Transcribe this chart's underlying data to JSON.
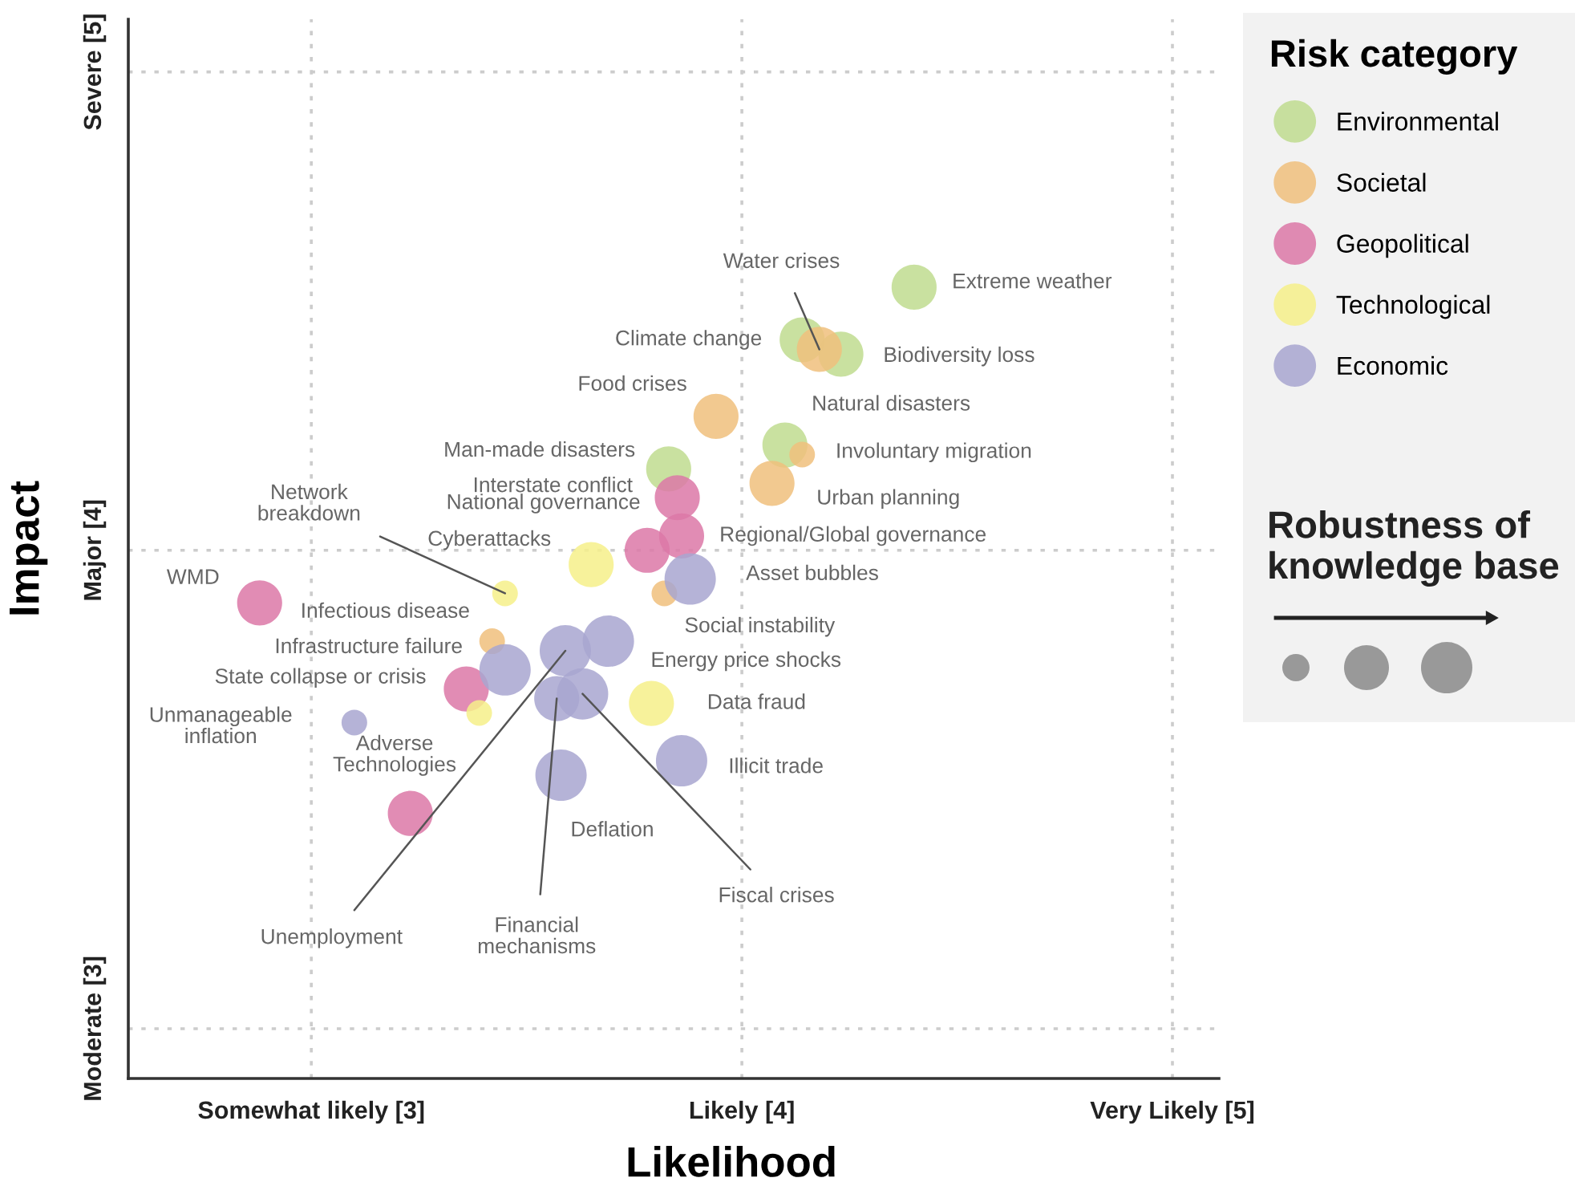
{
  "chart_data": {
    "type": "bubble",
    "xlabel": "Likelihood",
    "ylabel": "Impact",
    "legend_title": "Risk category",
    "legend": "right",
    "xlim": [
      2.575,
      5.108
    ],
    "ylim": [
      2.896,
      5.11
    ],
    "xticks": [
      {
        "value": 3,
        "label": "Somewhat likely [3]"
      },
      {
        "value": 4,
        "label": "Likely [4]"
      },
      {
        "value": 5,
        "label": "Very Likely [5]"
      }
    ],
    "yticks": [
      {
        "value": 3,
        "label": "Moderate [3]"
      },
      {
        "value": 4,
        "label": "Major [4]"
      },
      {
        "value": 5,
        "label": "Severe [5]"
      }
    ],
    "grid": true,
    "series": [
      {
        "name": "Environmental",
        "color": "#bfdc8f",
        "x": [
          4.4,
          4.14,
          4.23,
          4.1,
          3.83
        ],
        "values": [
          4.55,
          4.44,
          4.41,
          4.22,
          4.17
        ],
        "sizes": [
          0.77,
          0.77,
          0.77,
          0.77,
          0.77
        ]
      },
      {
        "name": "Societal",
        "color": "#f0bf7c",
        "x": [
          4.18,
          3.94,
          4.14,
          4.07,
          3.82,
          3.42
        ],
        "values": [
          4.42,
          4.28,
          4.2,
          4.14,
          3.91,
          3.81
        ],
        "sizes": [
          0.77,
          0.77,
          0.25,
          0.77,
          0.25,
          0.25
        ]
      },
      {
        "name": "Geopolitical",
        "color": "#dc78a7",
        "x": [
          3.85,
          3.86,
          3.78,
          2.88,
          3.36,
          3.23
        ],
        "values": [
          4.11,
          4.03,
          4.0,
          3.89,
          3.71,
          3.45
        ],
        "sizes": [
          0.77,
          0.77,
          0.77,
          0.77,
          0.77,
          0.77
        ]
      },
      {
        "name": "Technological",
        "color": "#f6f08a",
        "x": [
          3.65,
          3.45,
          3.39,
          3.79
        ],
        "values": [
          3.97,
          3.91,
          3.66,
          3.68
        ],
        "sizes": [
          0.77,
          0.25,
          0.25,
          0.77
        ]
      },
      {
        "name": "Economic",
        "color": "#a8a6d0",
        "x": [
          3.88,
          3.45,
          3.1,
          3.59,
          3.69,
          3.57,
          3.63,
          3.86,
          3.58
        ],
        "values": [
          3.94,
          3.75,
          3.64,
          3.79,
          3.81,
          3.69,
          3.7,
          3.56,
          3.53
        ],
        "sizes": [
          1,
          1,
          0.25,
          1,
          1,
          0.77,
          1,
          1,
          1
        ]
      }
    ],
    "annotations": [
      "Robustness of knowledge base",
      {
        "text": "Extreme weather",
        "x": 4.4,
        "y": 4.55
      },
      {
        "text": "Water crises",
        "x": 4.18,
        "y": 4.42
      },
      {
        "text": "Climate change",
        "x": 4.14,
        "y": 4.44
      },
      {
        "text": "Biodiversity loss",
        "x": 4.23,
        "y": 4.41
      },
      {
        "text": "Food crises",
        "x": 3.94,
        "y": 4.28
      },
      {
        "text": "Natural disasters",
        "x": 4.1,
        "y": 4.22
      },
      {
        "text": "Involuntary migration",
        "x": 4.14,
        "y": 4.2
      },
      {
        "text": "Urban planning",
        "x": 4.07,
        "y": 4.14
      },
      {
        "text": "Man-made disasters",
        "x": 3.83,
        "y": 4.17
      },
      {
        "text": "Interstate conflict",
        "x": 3.85,
        "y": 4.11
      },
      {
        "text": "National governance",
        "x": 3.78,
        "y": 4.0
      },
      {
        "text": "Regional/Global governance",
        "x": 3.86,
        "y": 4.03
      },
      {
        "text": "Cyberattacks",
        "x": 3.65,
        "y": 3.97
      },
      {
        "text": "Asset bubbles",
        "x": 3.88,
        "y": 3.94
      },
      {
        "text": "Network\nbreakdown",
        "x": 3.45,
        "y": 3.91
      },
      {
        "text": "Social instability",
        "x": 3.82,
        "y": 3.91
      },
      {
        "text": "WMD",
        "x": 2.88,
        "y": 3.89
      },
      {
        "text": "Infectious disease",
        "x": 3.42,
        "y": 3.81
      },
      {
        "text": "Infrastructure failure",
        "x": 3.45,
        "y": 3.75
      },
      {
        "text": "State collapse or crisis",
        "x": 3.36,
        "y": 3.71
      },
      {
        "text": "Adverse\nTechnologies",
        "x": 3.39,
        "y": 3.66
      },
      {
        "text": "Unmanageable\ninflation",
        "x": 3.1,
        "y": 3.64
      },
      {
        "text": "Unemployment",
        "x": 3.59,
        "y": 3.79
      },
      {
        "text": "Financial\nmechanisms",
        "x": 3.57,
        "y": 3.69
      },
      {
        "text": "Fiscal crises",
        "x": 3.63,
        "y": 3.7
      },
      {
        "text": "Deflation",
        "x": 3.58,
        "y": 3.53
      },
      {
        "text": "Data fraud",
        "x": 3.79,
        "y": 3.68
      },
      {
        "text": "Illicit trade",
        "x": 3.86,
        "y": 3.56
      },
      {
        "text": "Energy price shocks",
        "x": 3.69,
        "y": 3.81
      }
    ]
  }
}
